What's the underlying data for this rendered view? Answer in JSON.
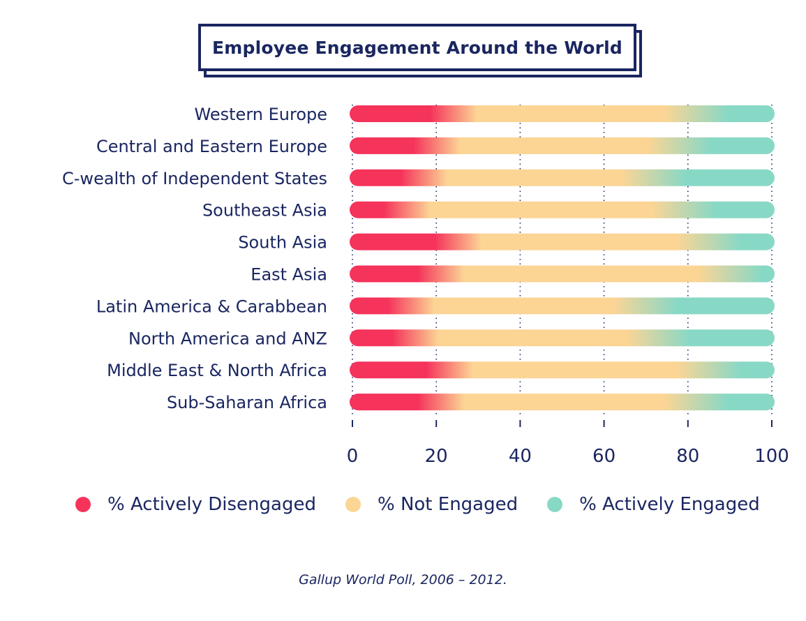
{
  "title": "Employee Engagement Around the World",
  "footer": "Gallup World Poll, 2006 – 2012.",
  "colors": {
    "disengaged": "#f5335b",
    "not_engaged": "#fcd595",
    "engaged": "#88d8c6",
    "text": "#1a2660"
  },
  "legend": [
    {
      "label": "% Actively Disengaged",
      "color_key": "disengaged"
    },
    {
      "label": "% Not Engaged",
      "color_key": "not_engaged"
    },
    {
      "label": "% Actively Engaged",
      "color_key": "engaged"
    }
  ],
  "chart_data": {
    "type": "bar",
    "orientation": "horizontal",
    "stacked": true,
    "title": "Employee Engagement Around the World",
    "xlabel": "",
    "ylabel": "",
    "xlim": [
      0,
      100
    ],
    "xticks": [
      0,
      20,
      40,
      60,
      80,
      100
    ],
    "grid": "vertical dotted",
    "legend_position": "bottom",
    "categories": [
      "Western Europe",
      "Central and Eastern Europe",
      "C-wealth of Independent States",
      "Southeast Asia",
      "South Asia",
      "East Asia",
      "Latin America & Carabbean",
      "North America and ANZ",
      "Middle East & North Africa",
      "Sub-Saharan Africa"
    ],
    "series": [
      {
        "name": "% Actively Disengaged",
        "values": [
          20,
          16,
          13,
          9,
          21,
          17,
          10,
          11,
          19,
          17
        ]
      },
      {
        "name": "% Not Engaged",
        "values": [
          66,
          66,
          63,
          74,
          68,
          77,
          64,
          66,
          70,
          69
        ]
      },
      {
        "name": "% Actively Engaged",
        "values": [
          14,
          18,
          24,
          17,
          11,
          6,
          26,
          23,
          11,
          14
        ]
      }
    ],
    "source": "Gallup World Poll, 2006 – 2012."
  }
}
